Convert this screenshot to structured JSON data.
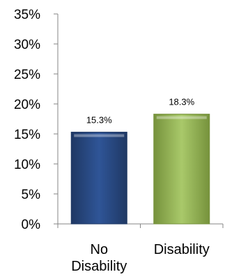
{
  "chart_data": {
    "type": "bar",
    "categories": [
      "No Disability",
      "Disability"
    ],
    "category_lines": [
      [
        "No",
        "Disability"
      ],
      [
        "Disability"
      ]
    ],
    "values": [
      15.3,
      18.3
    ],
    "data_labels": [
      "15.3%",
      "18.3%"
    ],
    "title": "",
    "xlabel": "",
    "ylabel": "",
    "ylim": [
      0,
      35
    ],
    "y_ticks": [
      0,
      5,
      10,
      15,
      20,
      25,
      30,
      35
    ],
    "y_tick_labels": [
      "0%",
      "5%",
      "10%",
      "15%",
      "20%",
      "25%",
      "30%",
      "35%"
    ],
    "grid": false,
    "legend": "none",
    "bar_colors": [
      "#2f5597",
      "#9bbb59"
    ],
    "bar_edge_colors": [
      "#1f3864",
      "#76923c"
    ]
  }
}
